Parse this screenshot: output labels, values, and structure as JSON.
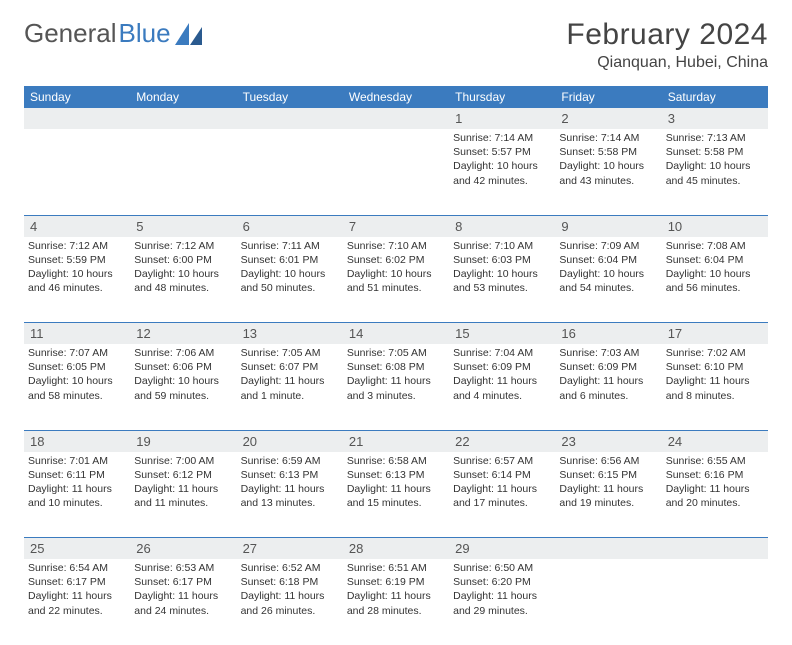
{
  "brand": {
    "part1": "General",
    "part2": "Blue"
  },
  "title": "February 2024",
  "location": "Qianquan, Hubei, China",
  "colors": {
    "accent": "#3b7bbf",
    "daybg": "#eceeef",
    "text": "#333333"
  },
  "dow": [
    "Sunday",
    "Monday",
    "Tuesday",
    "Wednesday",
    "Thursday",
    "Friday",
    "Saturday"
  ],
  "weeks": [
    [
      null,
      null,
      null,
      null,
      {
        "n": "1",
        "sr": "Sunrise: 7:14 AM",
        "ss": "Sunset: 5:57 PM",
        "dl": "Daylight: 10 hours and 42 minutes."
      },
      {
        "n": "2",
        "sr": "Sunrise: 7:14 AM",
        "ss": "Sunset: 5:58 PM",
        "dl": "Daylight: 10 hours and 43 minutes."
      },
      {
        "n": "3",
        "sr": "Sunrise: 7:13 AM",
        "ss": "Sunset: 5:58 PM",
        "dl": "Daylight: 10 hours and 45 minutes."
      }
    ],
    [
      {
        "n": "4",
        "sr": "Sunrise: 7:12 AM",
        "ss": "Sunset: 5:59 PM",
        "dl": "Daylight: 10 hours and 46 minutes."
      },
      {
        "n": "5",
        "sr": "Sunrise: 7:12 AM",
        "ss": "Sunset: 6:00 PM",
        "dl": "Daylight: 10 hours and 48 minutes."
      },
      {
        "n": "6",
        "sr": "Sunrise: 7:11 AM",
        "ss": "Sunset: 6:01 PM",
        "dl": "Daylight: 10 hours and 50 minutes."
      },
      {
        "n": "7",
        "sr": "Sunrise: 7:10 AM",
        "ss": "Sunset: 6:02 PM",
        "dl": "Daylight: 10 hours and 51 minutes."
      },
      {
        "n": "8",
        "sr": "Sunrise: 7:10 AM",
        "ss": "Sunset: 6:03 PM",
        "dl": "Daylight: 10 hours and 53 minutes."
      },
      {
        "n": "9",
        "sr": "Sunrise: 7:09 AM",
        "ss": "Sunset: 6:04 PM",
        "dl": "Daylight: 10 hours and 54 minutes."
      },
      {
        "n": "10",
        "sr": "Sunrise: 7:08 AM",
        "ss": "Sunset: 6:04 PM",
        "dl": "Daylight: 10 hours and 56 minutes."
      }
    ],
    [
      {
        "n": "11",
        "sr": "Sunrise: 7:07 AM",
        "ss": "Sunset: 6:05 PM",
        "dl": "Daylight: 10 hours and 58 minutes."
      },
      {
        "n": "12",
        "sr": "Sunrise: 7:06 AM",
        "ss": "Sunset: 6:06 PM",
        "dl": "Daylight: 10 hours and 59 minutes."
      },
      {
        "n": "13",
        "sr": "Sunrise: 7:05 AM",
        "ss": "Sunset: 6:07 PM",
        "dl": "Daylight: 11 hours and 1 minute."
      },
      {
        "n": "14",
        "sr": "Sunrise: 7:05 AM",
        "ss": "Sunset: 6:08 PM",
        "dl": "Daylight: 11 hours and 3 minutes."
      },
      {
        "n": "15",
        "sr": "Sunrise: 7:04 AM",
        "ss": "Sunset: 6:09 PM",
        "dl": "Daylight: 11 hours and 4 minutes."
      },
      {
        "n": "16",
        "sr": "Sunrise: 7:03 AM",
        "ss": "Sunset: 6:09 PM",
        "dl": "Daylight: 11 hours and 6 minutes."
      },
      {
        "n": "17",
        "sr": "Sunrise: 7:02 AM",
        "ss": "Sunset: 6:10 PM",
        "dl": "Daylight: 11 hours and 8 minutes."
      }
    ],
    [
      {
        "n": "18",
        "sr": "Sunrise: 7:01 AM",
        "ss": "Sunset: 6:11 PM",
        "dl": "Daylight: 11 hours and 10 minutes."
      },
      {
        "n": "19",
        "sr": "Sunrise: 7:00 AM",
        "ss": "Sunset: 6:12 PM",
        "dl": "Daylight: 11 hours and 11 minutes."
      },
      {
        "n": "20",
        "sr": "Sunrise: 6:59 AM",
        "ss": "Sunset: 6:13 PM",
        "dl": "Daylight: 11 hours and 13 minutes."
      },
      {
        "n": "21",
        "sr": "Sunrise: 6:58 AM",
        "ss": "Sunset: 6:13 PM",
        "dl": "Daylight: 11 hours and 15 minutes."
      },
      {
        "n": "22",
        "sr": "Sunrise: 6:57 AM",
        "ss": "Sunset: 6:14 PM",
        "dl": "Daylight: 11 hours and 17 minutes."
      },
      {
        "n": "23",
        "sr": "Sunrise: 6:56 AM",
        "ss": "Sunset: 6:15 PM",
        "dl": "Daylight: 11 hours and 19 minutes."
      },
      {
        "n": "24",
        "sr": "Sunrise: 6:55 AM",
        "ss": "Sunset: 6:16 PM",
        "dl": "Daylight: 11 hours and 20 minutes."
      }
    ],
    [
      {
        "n": "25",
        "sr": "Sunrise: 6:54 AM",
        "ss": "Sunset: 6:17 PM",
        "dl": "Daylight: 11 hours and 22 minutes."
      },
      {
        "n": "26",
        "sr": "Sunrise: 6:53 AM",
        "ss": "Sunset: 6:17 PM",
        "dl": "Daylight: 11 hours and 24 minutes."
      },
      {
        "n": "27",
        "sr": "Sunrise: 6:52 AM",
        "ss": "Sunset: 6:18 PM",
        "dl": "Daylight: 11 hours and 26 minutes."
      },
      {
        "n": "28",
        "sr": "Sunrise: 6:51 AM",
        "ss": "Sunset: 6:19 PM",
        "dl": "Daylight: 11 hours and 28 minutes."
      },
      {
        "n": "29",
        "sr": "Sunrise: 6:50 AM",
        "ss": "Sunset: 6:20 PM",
        "dl": "Daylight: 11 hours and 29 minutes."
      },
      null,
      null
    ]
  ]
}
